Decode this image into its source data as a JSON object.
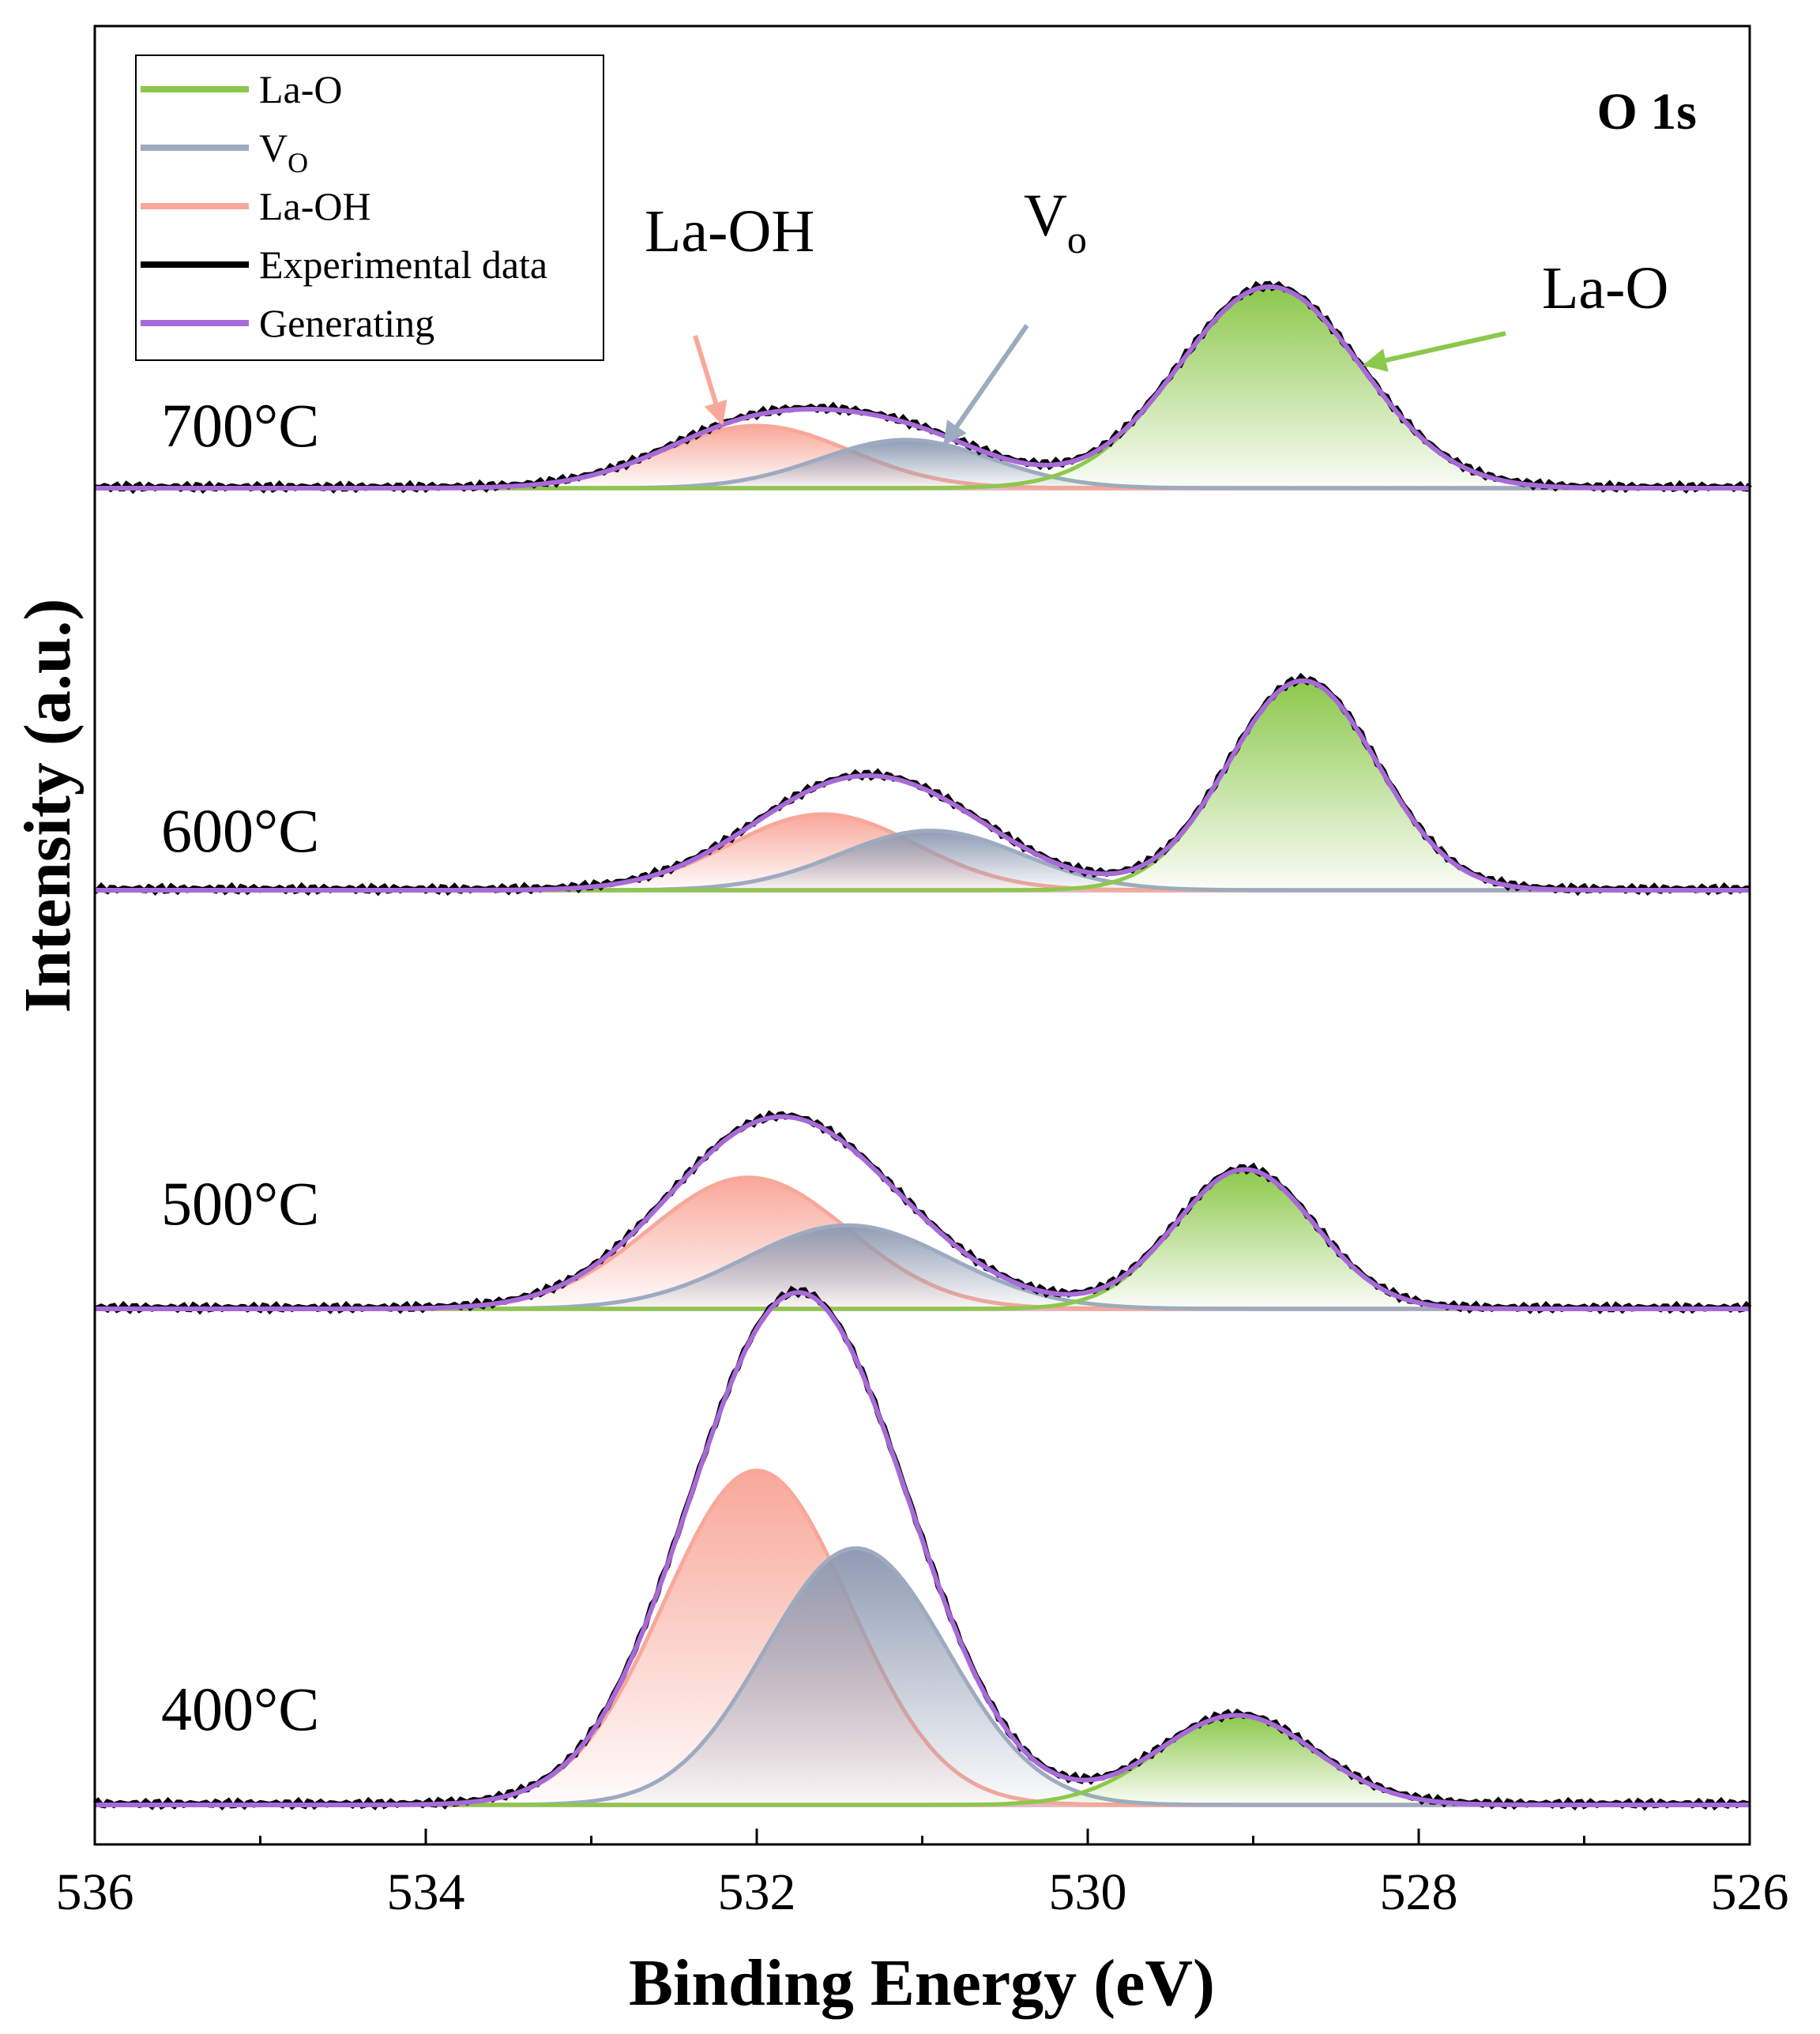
{
  "chart_data": {
    "type": "line",
    "title": "O 1s",
    "xlabel": "Binding Energy (eV)",
    "ylabel": "Intensity (a.u.)",
    "xlim": [
      536,
      526
    ],
    "xticks": [
      536,
      534,
      532,
      530,
      528,
      526
    ],
    "grid": false,
    "legend_position": "top-left",
    "legend": [
      {
        "key": "la_o",
        "label": "La-O",
        "sub": ""
      },
      {
        "key": "vo",
        "label": "V",
        "sub": "O"
      },
      {
        "key": "la_oh",
        "label": "La-OH",
        "sub": ""
      },
      {
        "key": "exp",
        "label": "Experimental data",
        "sub": ""
      },
      {
        "key": "gen",
        "label": "Generating",
        "sub": ""
      }
    ],
    "colors": {
      "la_o": "#8cc84b",
      "vo": "#9daac0",
      "la_oh": "#f8a89a",
      "exp": "#000000",
      "gen": "#a86ad8",
      "baseline": "#e4bcc6"
    },
    "annotations": [
      {
        "id": "la-oh",
        "text": "La-OH",
        "sub": "",
        "target": "la_oh"
      },
      {
        "id": "vo",
        "text": "V",
        "sub": "o",
        "target": "vo"
      },
      {
        "id": "la-o",
        "text": "La-O",
        "sub": "",
        "target": "la_o"
      }
    ],
    "series": [
      {
        "sample": "700°C",
        "baseline": 0.0,
        "peaks": [
          {
            "component": "La-OH",
            "center": 532.0,
            "height": 0.31,
            "sigma": 0.56
          },
          {
            "component": "Vo",
            "center": 531.1,
            "height": 0.24,
            "sigma": 0.52
          },
          {
            "component": "La-O",
            "center": 528.9,
            "height": 1.0,
            "sigma": 0.55
          }
        ]
      },
      {
        "sample": "600°C",
        "baseline": 0.0,
        "peaks": [
          {
            "component": "La-OH",
            "center": 531.6,
            "height": 0.37,
            "sigma": 0.56
          },
          {
            "component": "Vo",
            "center": 530.95,
            "height": 0.29,
            "sigma": 0.55
          },
          {
            "component": "La-O",
            "center": 528.7,
            "height": 1.02,
            "sigma": 0.45
          }
        ]
      },
      {
        "sample": "500°C",
        "baseline": 0.0,
        "peaks": [
          {
            "component": "La-OH",
            "center": 532.05,
            "height": 0.66,
            "sigma": 0.6
          },
          {
            "component": "Vo",
            "center": 531.45,
            "height": 0.42,
            "sigma": 0.62
          },
          {
            "component": "La-O",
            "center": 529.05,
            "height": 0.7,
            "sigma": 0.42
          }
        ]
      },
      {
        "sample": "400°C",
        "baseline": 0.0,
        "peaks": [
          {
            "component": "La-OH",
            "center": 532.0,
            "height": 1.12,
            "sigma": 0.56
          },
          {
            "component": "Vo",
            "center": 531.4,
            "height": 0.86,
            "sigma": 0.55
          },
          {
            "component": "La-O",
            "center": 529.1,
            "height": 0.3,
            "sigma": 0.47
          }
        ]
      }
    ]
  }
}
